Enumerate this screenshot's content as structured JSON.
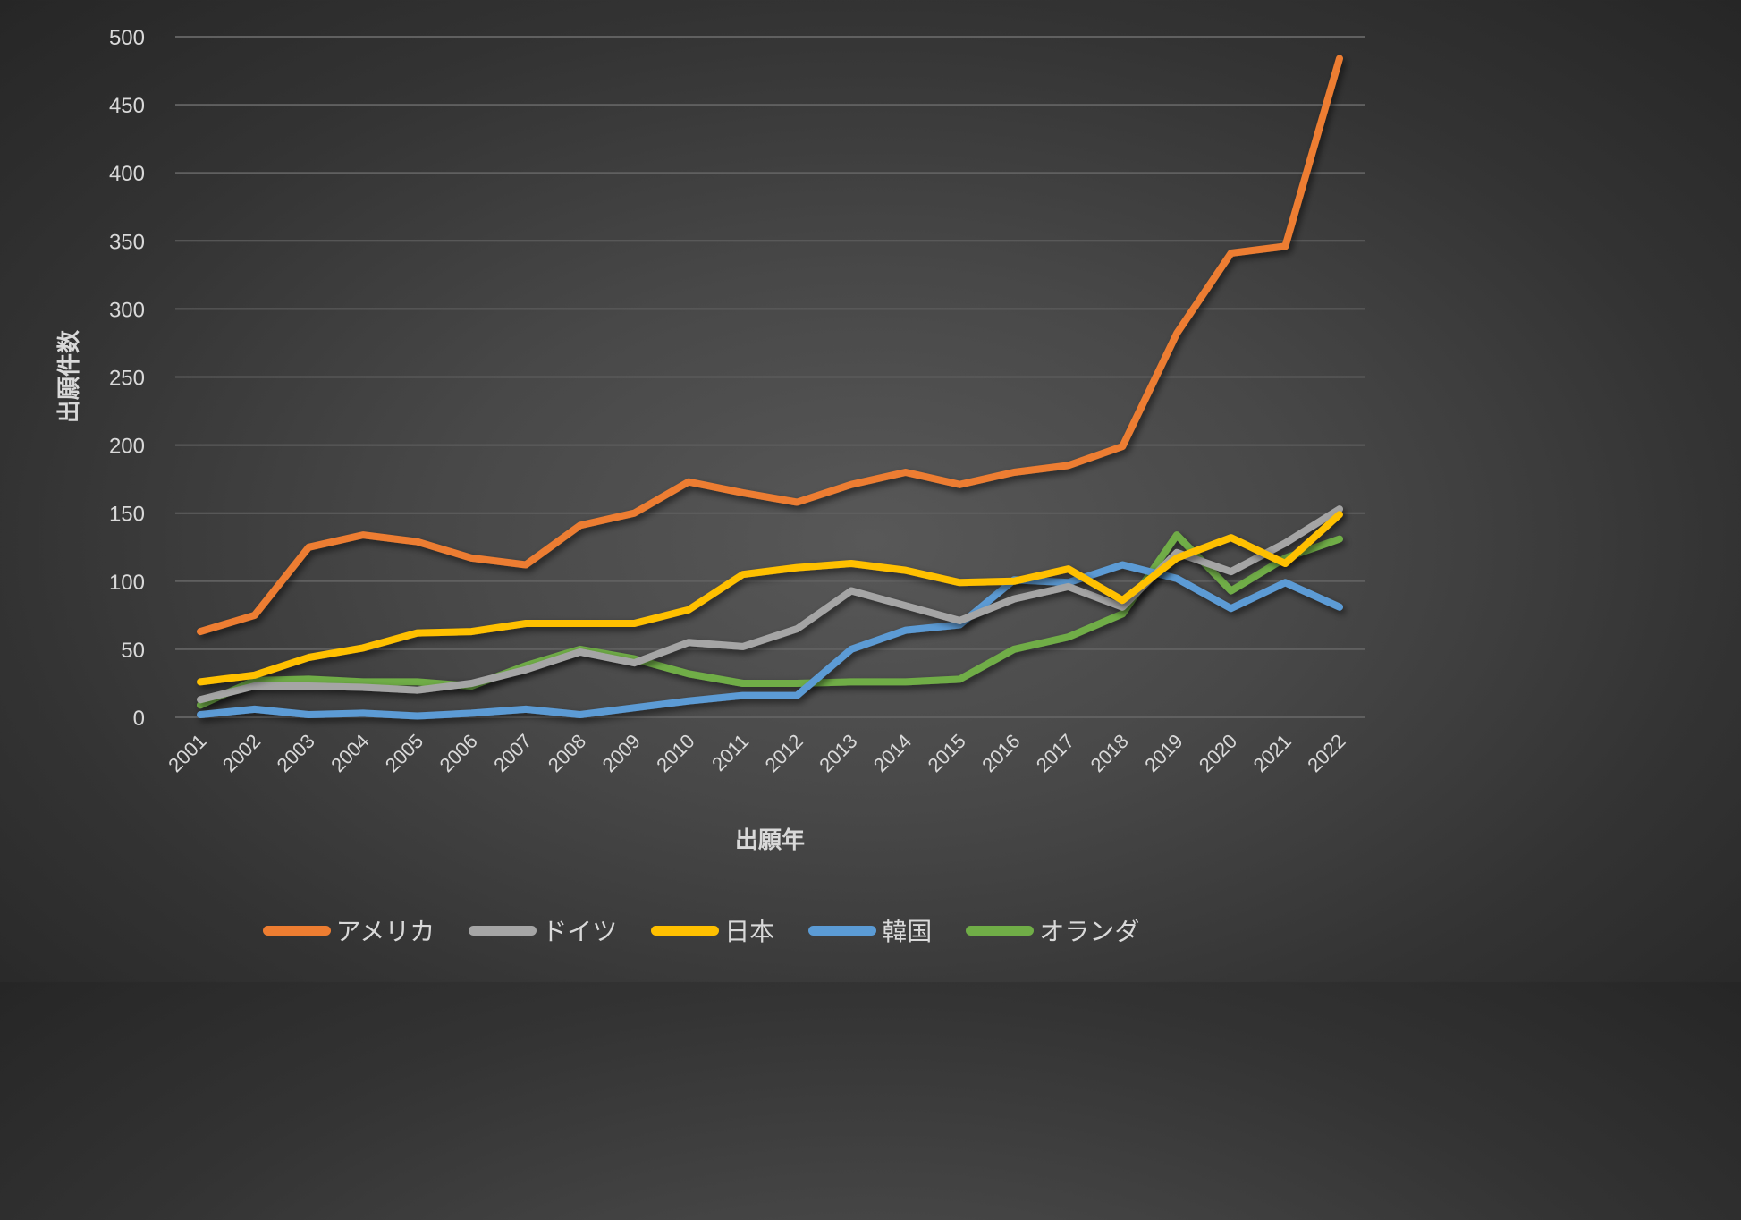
{
  "chart_data": {
    "type": "line",
    "title": "",
    "xlabel": "出願年",
    "ylabel": "出願件数",
    "ylim": [
      0,
      500
    ],
    "yticks": [
      0,
      50,
      100,
      150,
      200,
      250,
      300,
      350,
      400,
      450,
      500
    ],
    "grid": true,
    "legend_position": "bottom",
    "categories": [
      "2001",
      "2002",
      "2003",
      "2004",
      "2005",
      "2006",
      "2007",
      "2008",
      "2009",
      "2010",
      "2011",
      "2012",
      "2013",
      "2014",
      "2015",
      "2016",
      "2017",
      "2018",
      "2019",
      "2020",
      "2021",
      "2022"
    ],
    "series": [
      {
        "name": "アメリカ",
        "color": "#ED7D31",
        "values": [
          63,
          75,
          125,
          134,
          129,
          117,
          112,
          141,
          150,
          173,
          165,
          158,
          171,
          180,
          171,
          180,
          185,
          199,
          282,
          341,
          346,
          484
        ]
      },
      {
        "name": "ドイツ",
        "color": "#A5A5A5",
        "values": [
          13,
          23,
          23,
          22,
          20,
          25,
          35,
          48,
          40,
          55,
          52,
          65,
          93,
          82,
          71,
          87,
          96,
          81,
          121,
          107,
          128,
          153
        ]
      },
      {
        "name": "日本",
        "color": "#FFC000",
        "values": [
          26,
          31,
          44,
          51,
          62,
          63,
          69,
          69,
          69,
          79,
          105,
          110,
          113,
          108,
          99,
          100,
          109,
          86,
          117,
          132,
          113,
          149
        ]
      },
      {
        "name": "韓国",
        "color": "#5B9BD5",
        "values": [
          2,
          6,
          2,
          3,
          1,
          3,
          6,
          2,
          7,
          12,
          16,
          16,
          50,
          64,
          68,
          101,
          99,
          112,
          102,
          80,
          99,
          81
        ]
      },
      {
        "name": "オランダ",
        "color": "#70AD47",
        "values": [
          9,
          27,
          28,
          26,
          26,
          23,
          38,
          50,
          43,
          32,
          25,
          25,
          26,
          26,
          28,
          50,
          59,
          76,
          134,
          93,
          117,
          131
        ]
      }
    ]
  },
  "legend": {
    "items": [
      {
        "label": "アメリカ",
        "color": "#ED7D31"
      },
      {
        "label": "ドイツ",
        "color": "#A5A5A5"
      },
      {
        "label": "日本",
        "color": "#FFC000"
      },
      {
        "label": "韓国",
        "color": "#5B9BD5"
      },
      {
        "label": "オランダ",
        "color": "#70AD47"
      }
    ]
  }
}
